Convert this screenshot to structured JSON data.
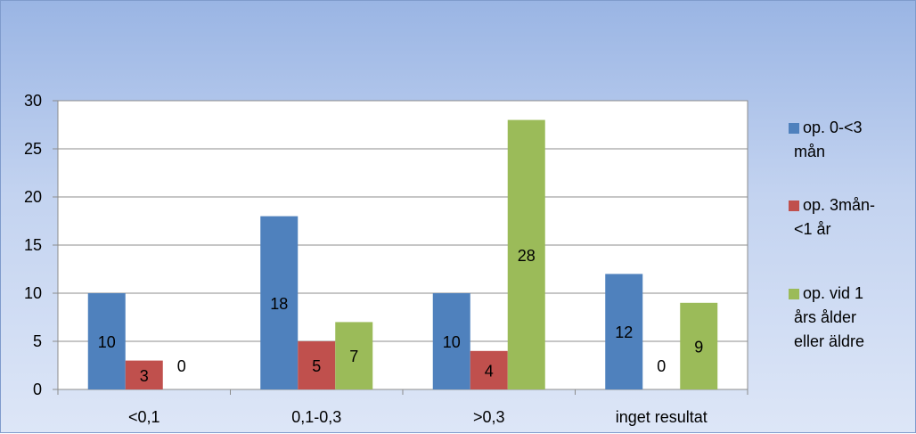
{
  "chart_data": {
    "type": "bar",
    "title": "",
    "xlabel": "",
    "ylabel": "",
    "categories": [
      "<0,1",
      "0,1-0,3",
      ">0,3",
      "inget resultat"
    ],
    "ylim": [
      0,
      30
    ],
    "yticks": [
      0,
      5,
      10,
      15,
      20,
      25,
      30
    ],
    "grid": true,
    "legend_position": "right",
    "series": [
      {
        "name": "op. 0-<3 mån",
        "legend_lines": [
          "op. 0-<3",
          "mån"
        ],
        "color": "#4f81bd",
        "values": [
          10,
          18,
          10,
          12
        ]
      },
      {
        "name": "op. 3mån-<1 år",
        "legend_lines": [
          "op. 3mån-",
          "<1 år"
        ],
        "color": "#c0504d",
        "values": [
          3,
          5,
          4,
          0
        ]
      },
      {
        "name": "op. vid 1 års ålder eller äldre",
        "legend_lines": [
          " op. vid 1",
          "års ålder",
          "eller äldre"
        ],
        "color": "#9bbb59",
        "values": [
          0,
          7,
          28,
          9
        ]
      }
    ]
  }
}
